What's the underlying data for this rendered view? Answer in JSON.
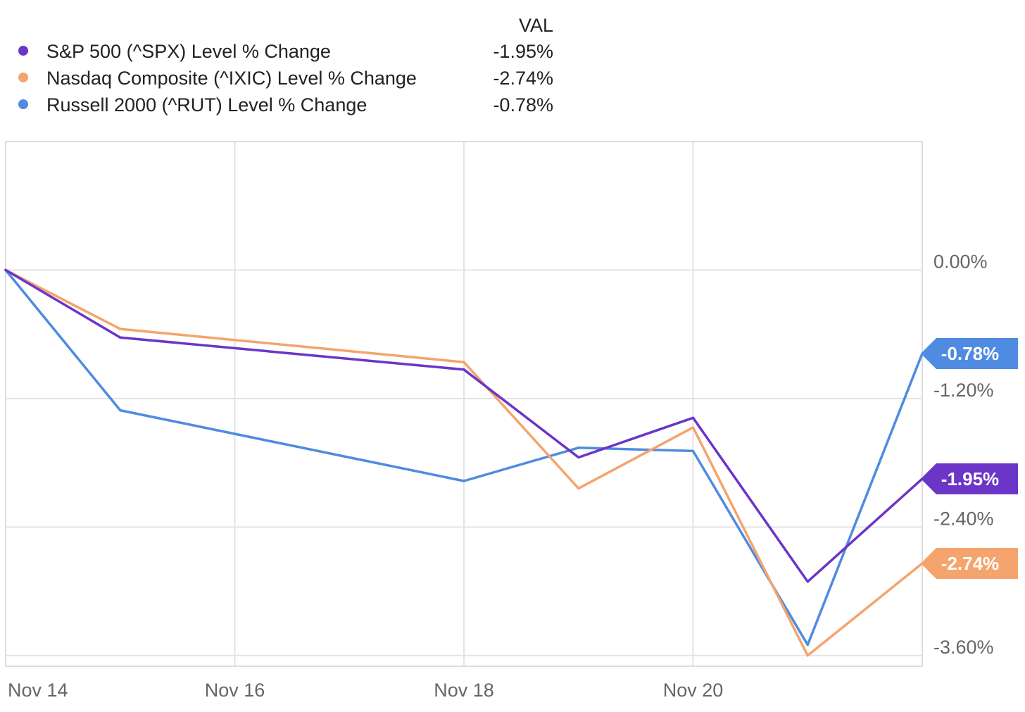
{
  "chart_data": {
    "type": "line",
    "legend": {
      "column_header": "VAL",
      "entries": [
        {
          "series": 0,
          "label": "S&P 500 (^SPX) Level % Change",
          "value": "-1.95%"
        },
        {
          "series": 1,
          "label": "Nasdaq Composite (^IXIC) Level % Change",
          "value": "-2.74%"
        },
        {
          "series": 2,
          "label": "Russell 2000 (^RUT) Level % Change",
          "value": "-0.78%"
        }
      ]
    },
    "x": [
      "2024-11-14",
      "2024-11-15",
      "2024-11-18",
      "2024-11-19",
      "2024-11-20",
      "2024-11-21",
      "2024-11-22"
    ],
    "x_ticks": [
      {
        "date": "2024-11-14",
        "label": "Nov 14"
      },
      {
        "date": "2024-11-16",
        "label": "Nov 16"
      },
      {
        "date": "2024-11-18",
        "label": "Nov 18"
      },
      {
        "date": "2024-11-20",
        "label": "Nov 20"
      }
    ],
    "y_ticks": [
      {
        "value": 0,
        "label": "0.00%"
      },
      {
        "value": -1.2,
        "label": "-1.20%"
      },
      {
        "value": -2.4,
        "label": "-2.40%"
      },
      {
        "value": -3.6,
        "label": "-3.60%"
      }
    ],
    "ylim": [
      -3.7,
      1.2
    ],
    "grid": true,
    "series": [
      {
        "name": "S&P 500 (^SPX) Level % Change",
        "color": "#6b35c8",
        "values": [
          0,
          -0.63,
          -0.93,
          -1.75,
          -1.38,
          -2.91,
          -1.95
        ],
        "end_label": "-1.95%"
      },
      {
        "name": "Nasdaq Composite (^IXIC) Level % Change",
        "color": "#f4a46c",
        "values": [
          0,
          -0.55,
          -0.86,
          -2.04,
          -1.47,
          -3.6,
          -2.74
        ],
        "end_label": "-2.74%"
      },
      {
        "name": "Russell 2000 (^RUT) Level % Change",
        "color": "#4f8be0",
        "values": [
          0,
          -1.31,
          -1.97,
          -1.66,
          -1.69,
          -3.5,
          -0.78
        ],
        "end_label": "-0.78%"
      }
    ]
  }
}
